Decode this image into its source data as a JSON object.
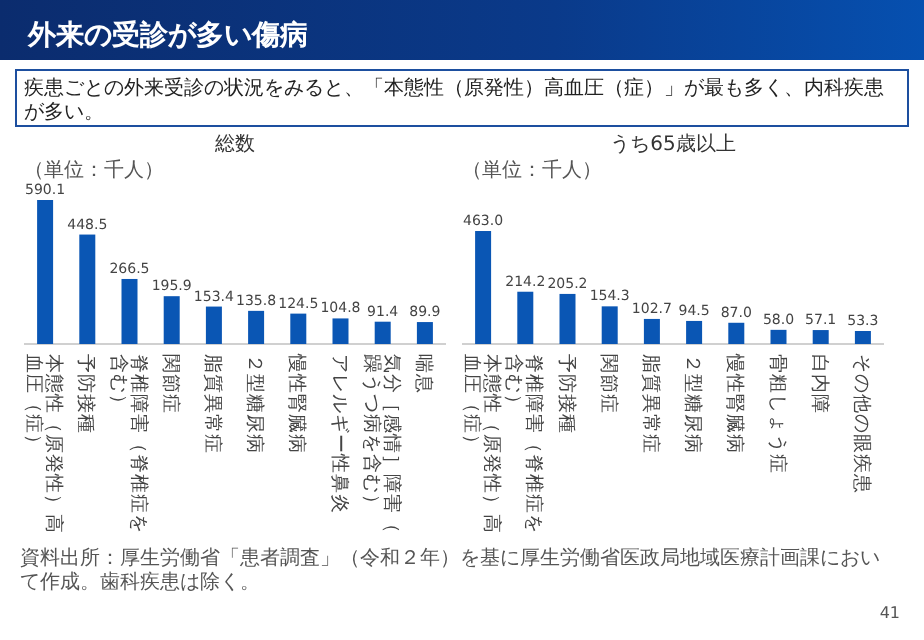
{
  "chart_data": [
    {
      "type": "other",
      "title": "外来の受診が多い傷病",
      "subtitle": "疾患ごとの外来受診の状況をみると、「本態性（原発性）高血圧（症）」が最も多く、内科疾患が多い。",
      "annotations": [
        "資料出所：厚生労働省「患者調査」（令和２年）を基に厚生労働省医政局地域医療計画課において作成。歯科疾患は除く。",
        "41"
      ]
    },
    {
      "type": "bar",
      "title": "総数",
      "ylabel": "（単位：千人）",
      "color": "#0a56b4",
      "categories": [
        "本態性（原発性）高血圧（症）",
        "予防接種",
        "脊椎障害（脊椎症を含む）",
        "関節症",
        "脂質異常症",
        "２型糖尿病",
        "慢性腎臓病",
        "アレルギー性鼻炎",
        "気分［感情］障害（躁うつ病を含む）",
        "喘息"
      ],
      "values": [
        590.1,
        448.5,
        266.5,
        195.9,
        153.4,
        135.8,
        124.5,
        104.8,
        91.4,
        89.9
      ],
      "value_labels": [
        "590.1",
        "448.5",
        "266.5",
        "195.9",
        "153.4",
        "135.8",
        "124.5",
        "104.8",
        "91.4",
        "89.9"
      ]
    },
    {
      "type": "bar",
      "title": "うち65歳以上",
      "ylabel": "（単位：千人）",
      "color": "#0a56b4",
      "categories": [
        "本態性（原発性）高血圧（症）",
        "脊椎障害（脊椎症を含む）",
        "予防接種",
        "関節症",
        "脂質異常症",
        "２型糖尿病",
        "慢性腎臓病",
        "骨粗しょう症",
        "白内障",
        "その他の眼疾患"
      ],
      "values": [
        463.0,
        214.2,
        205.2,
        154.3,
        102.7,
        94.5,
        87.0,
        58.0,
        57.1,
        53.3
      ],
      "value_labels": [
        "463.0",
        "214.2",
        "205.2",
        "154.3",
        "102.7",
        "94.5",
        "87.0",
        "58.0",
        "57.1",
        "53.3"
      ]
    }
  ]
}
